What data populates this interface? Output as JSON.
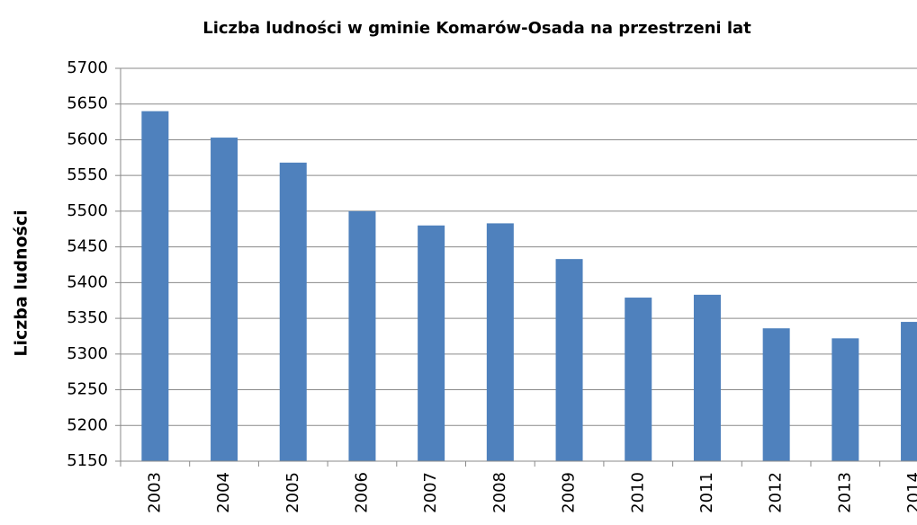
{
  "chart_data": {
    "type": "bar",
    "title": "Liczba ludności w gminie Komarów-Osada na przestrzeni lat",
    "y_label": "Liczba ludności",
    "categories": [
      "2003",
      "2004",
      "2005",
      "2006",
      "2007",
      "2008",
      "2009",
      "2010",
      "2011",
      "2012",
      "2013",
      "2014"
    ],
    "values": [
      5640,
      5603,
      5568,
      5500,
      5480,
      5483,
      5433,
      5379,
      5383,
      5336,
      5322,
      5345
    ],
    "color": "#4f81bd",
    "ylim": [
      5150,
      5700
    ],
    "yticks": [
      5150,
      5200,
      5250,
      5300,
      5350,
      5400,
      5450,
      5500,
      5550,
      5600,
      5650,
      5700
    ],
    "grid": true
  }
}
